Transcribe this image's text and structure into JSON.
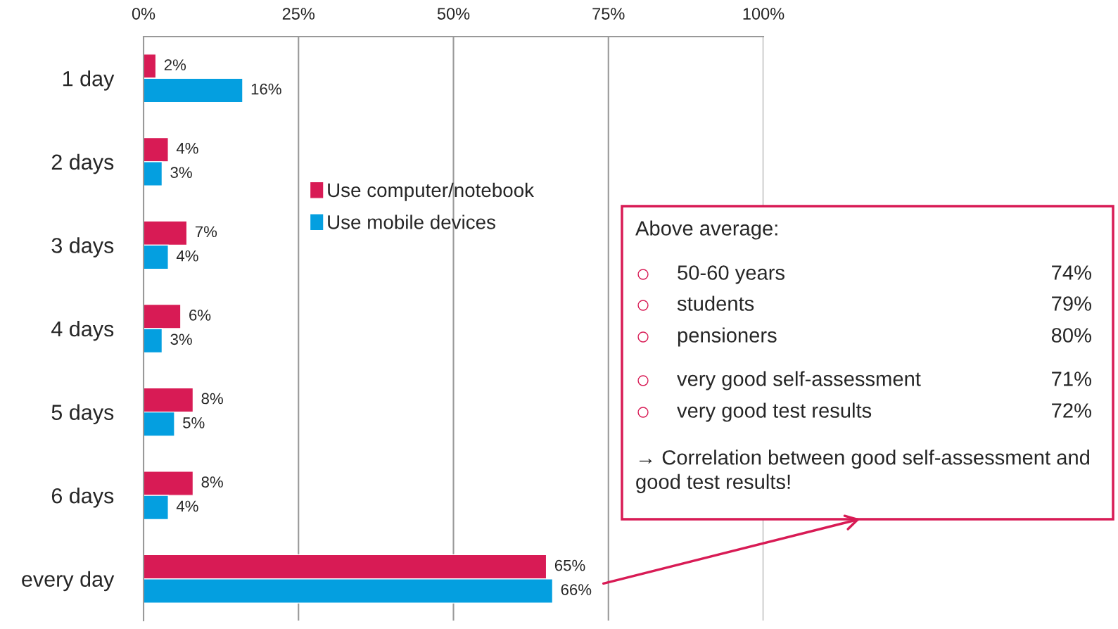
{
  "chart_data": {
    "type": "bar",
    "orientation": "horizontal",
    "categories": [
      "1 day",
      "2 days",
      "3 days",
      "4 days",
      "5 days",
      "6 days",
      "every day"
    ],
    "series": [
      {
        "name": "Use computer/notebook",
        "color": "#d81b55",
        "values": [
          2,
          4,
          7,
          6,
          8,
          8,
          65
        ],
        "value_labels": [
          "2%",
          "4%",
          "7%",
          "6%",
          "8%",
          "8%",
          "65%"
        ]
      },
      {
        "name": "Use mobile devices",
        "color": "#049fe0",
        "values": [
          16,
          3,
          4,
          3,
          5,
          4,
          66
        ],
        "value_labels": [
          "16%",
          "3%",
          "4%",
          "3%",
          "5%",
          "4%",
          "66%"
        ]
      }
    ],
    "xlim": [
      0,
      100
    ],
    "xticks": [
      {
        "value": 0,
        "label": "0%"
      },
      {
        "value": 25,
        "label": "25%"
      },
      {
        "value": 50,
        "label": "50%"
      },
      {
        "value": 75,
        "label": "75%"
      },
      {
        "value": 100,
        "label": "100%"
      }
    ],
    "grid": "x",
    "legend": "top",
    "annotations": [
      "Above average:",
      "50-60 years",
      "74%",
      "students",
      "79%",
      "pensioners",
      "80%",
      "very good self-assessment",
      "71%",
      "very good test results",
      "72%",
      "→ Correlation between good self-assessment and good test results!"
    ]
  }
}
